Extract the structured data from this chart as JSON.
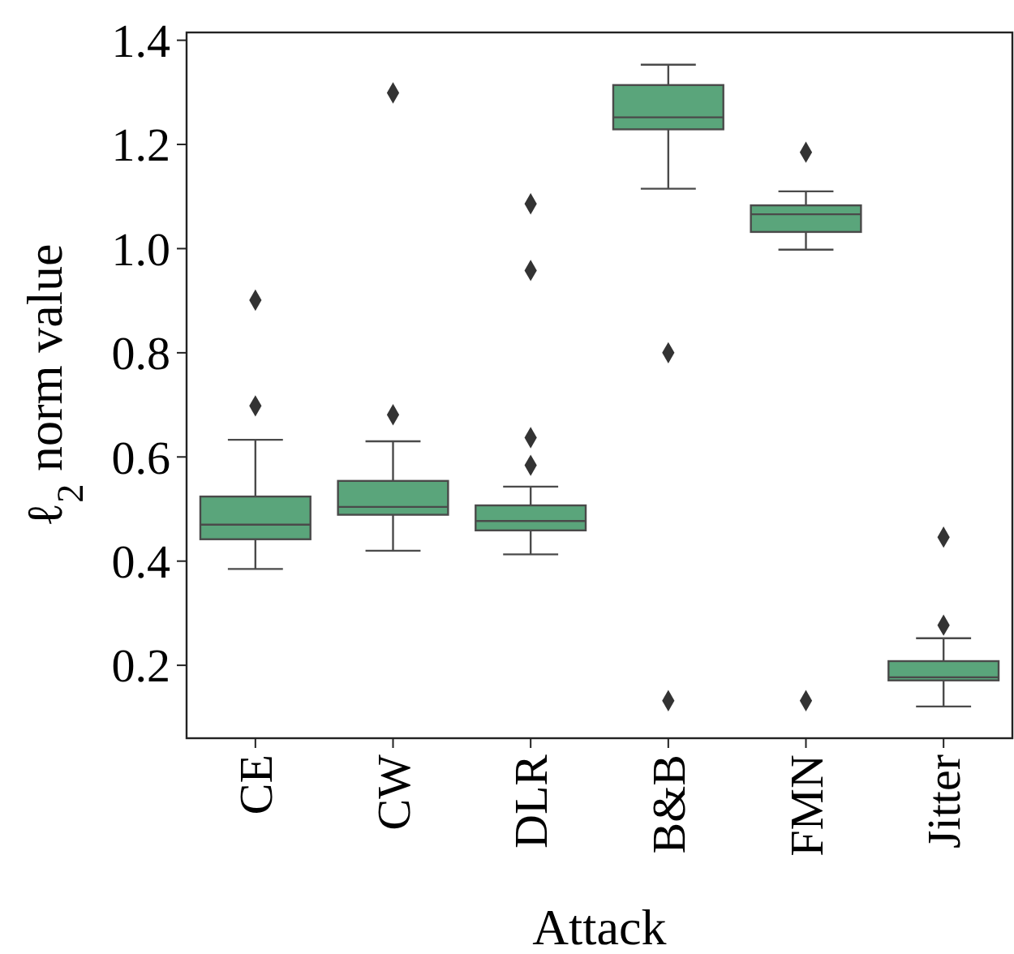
{
  "chart_data": {
    "type": "box",
    "xlabel": "Attack",
    "ylabel": "ℓ$_{2}$ norm value",
    "categories": [
      "CE",
      "CW",
      "DLR",
      "B&B",
      "FMN",
      "Jitter"
    ],
    "color": "#5aa57b",
    "ylim": [
      0.06,
      1.415
    ],
    "yticks": [
      {
        "value": 0.2,
        "label": "0.2"
      },
      {
        "value": 0.4,
        "label": "0.4"
      },
      {
        "value": 0.6,
        "label": "0.6"
      },
      {
        "value": 0.8,
        "label": "0.8"
      },
      {
        "value": 1.0,
        "label": "1.0"
      },
      {
        "value": 1.2,
        "label": "1.2"
      },
      {
        "value": 1.4,
        "label": "1.4"
      }
    ],
    "grid": false,
    "marker": "diamond",
    "boxes": [
      {
        "low": 0.385,
        "q1": 0.442,
        "median": 0.47,
        "q3": 0.524,
        "high": 0.633,
        "outliers": [
          0.698,
          0.901
        ]
      },
      {
        "low": 0.42,
        "q1": 0.489,
        "median": 0.504,
        "q3": 0.554,
        "high": 0.63,
        "outliers": [
          0.681,
          1.299
        ]
      },
      {
        "low": 0.413,
        "q1": 0.459,
        "median": 0.477,
        "q3": 0.507,
        "high": 0.543,
        "outliers": [
          0.584,
          0.637,
          0.958,
          1.086
        ]
      },
      {
        "low": 1.115,
        "q1": 1.229,
        "median": 1.252,
        "q3": 1.314,
        "high": 1.353,
        "outliers": [
          0.8,
          0.132
        ]
      },
      {
        "low": 0.998,
        "q1": 1.032,
        "median": 1.066,
        "q3": 1.083,
        "high": 1.11,
        "outliers": [
          1.185,
          0.132
        ]
      },
      {
        "low": 0.121,
        "q1": 0.171,
        "median": 0.177,
        "q3": 0.208,
        "high": 0.252,
        "outliers": [
          0.277,
          0.446
        ]
      }
    ]
  }
}
